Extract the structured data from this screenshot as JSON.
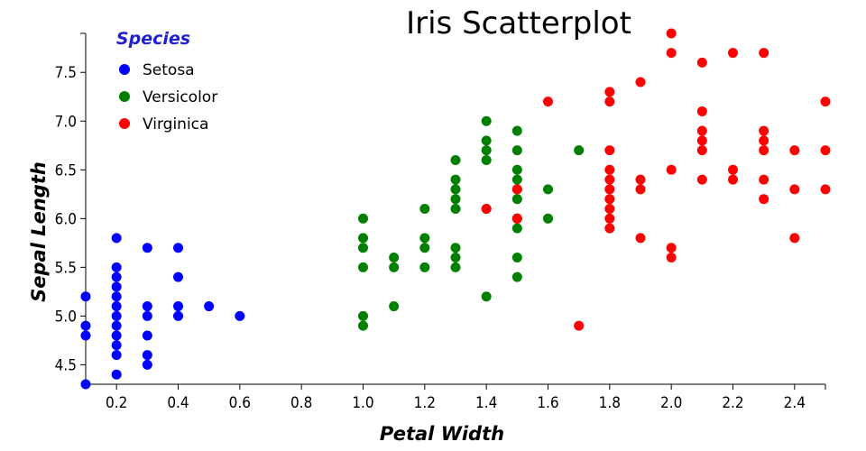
{
  "chart_data": {
    "type": "scatter",
    "title": "Iris Scatterplot",
    "xlabel": "Petal Width",
    "ylabel": "Sepal Length",
    "xlim": [
      0.1,
      2.5
    ],
    "ylim": [
      4.3,
      7.9
    ],
    "x_ticks": [
      {
        "value": 0.2,
        "label": "0.2"
      },
      {
        "value": 0.4,
        "label": "0.4"
      },
      {
        "value": 0.6,
        "label": "0.6"
      },
      {
        "value": 0.8,
        "label": "0.8"
      },
      {
        "value": 1.0,
        "label": "1.0"
      },
      {
        "value": 1.2,
        "label": "1.2"
      },
      {
        "value": 1.4,
        "label": "1.4"
      },
      {
        "value": 1.6,
        "label": "1.6"
      },
      {
        "value": 1.8,
        "label": "1.8"
      },
      {
        "value": 2.0,
        "label": "2.0"
      },
      {
        "value": 2.2,
        "label": "2.2"
      },
      {
        "value": 2.4,
        "label": "2.4"
      }
    ],
    "y_ticks": [
      {
        "value": 4.5,
        "label": "4.5"
      },
      {
        "value": 5.0,
        "label": "5.0"
      },
      {
        "value": 5.5,
        "label": "5.5"
      },
      {
        "value": 6.0,
        "label": "6.0"
      },
      {
        "value": 6.5,
        "label": "6.5"
      },
      {
        "value": 7.0,
        "label": "7.0"
      },
      {
        "value": 7.5,
        "label": "7.5"
      }
    ],
    "grid": false,
    "legend": {
      "title": "Species",
      "title_color": "#2020d0",
      "placement": "top-left"
    },
    "series": [
      {
        "name": "Setosa",
        "color": "#0000ff",
        "points": [
          [
            0.1,
            4.3
          ],
          [
            0.1,
            4.8
          ],
          [
            0.1,
            4.9
          ],
          [
            0.1,
            5.2
          ],
          [
            0.2,
            4.4
          ],
          [
            0.2,
            4.6
          ],
          [
            0.2,
            4.7
          ],
          [
            0.2,
            4.8
          ],
          [
            0.2,
            4.9
          ],
          [
            0.2,
            5.0
          ],
          [
            0.2,
            5.1
          ],
          [
            0.2,
            5.2
          ],
          [
            0.2,
            5.3
          ],
          [
            0.2,
            5.4
          ],
          [
            0.2,
            5.5
          ],
          [
            0.2,
            5.8
          ],
          [
            0.3,
            4.5
          ],
          [
            0.3,
            4.6
          ],
          [
            0.3,
            4.8
          ],
          [
            0.3,
            5.0
          ],
          [
            0.3,
            5.1
          ],
          [
            0.3,
            5.7
          ],
          [
            0.4,
            5.0
          ],
          [
            0.4,
            5.1
          ],
          [
            0.4,
            5.4
          ],
          [
            0.4,
            5.7
          ],
          [
            0.5,
            5.1
          ],
          [
            0.6,
            5.0
          ]
        ]
      },
      {
        "name": "Versicolor",
        "color": "#008000",
        "points": [
          [
            1.0,
            4.9
          ],
          [
            1.0,
            5.0
          ],
          [
            1.0,
            5.5
          ],
          [
            1.0,
            5.7
          ],
          [
            1.0,
            5.8
          ],
          [
            1.0,
            6.0
          ],
          [
            1.1,
            5.1
          ],
          [
            1.1,
            5.5
          ],
          [
            1.1,
            5.6
          ],
          [
            1.2,
            5.5
          ],
          [
            1.2,
            5.7
          ],
          [
            1.2,
            5.8
          ],
          [
            1.2,
            6.1
          ],
          [
            1.3,
            5.5
          ],
          [
            1.3,
            5.6
          ],
          [
            1.3,
            5.7
          ],
          [
            1.3,
            6.1
          ],
          [
            1.3,
            6.2
          ],
          [
            1.3,
            6.3
          ],
          [
            1.3,
            6.4
          ],
          [
            1.3,
            6.6
          ],
          [
            1.4,
            5.2
          ],
          [
            1.4,
            6.1
          ],
          [
            1.4,
            6.6
          ],
          [
            1.4,
            6.7
          ],
          [
            1.4,
            6.8
          ],
          [
            1.4,
            7.0
          ],
          [
            1.5,
            5.4
          ],
          [
            1.5,
            5.6
          ],
          [
            1.5,
            5.9
          ],
          [
            1.5,
            6.0
          ],
          [
            1.5,
            6.2
          ],
          [
            1.5,
            6.3
          ],
          [
            1.5,
            6.4
          ],
          [
            1.5,
            6.5
          ],
          [
            1.5,
            6.7
          ],
          [
            1.5,
            6.9
          ],
          [
            1.6,
            6.0
          ],
          [
            1.6,
            6.3
          ],
          [
            1.7,
            6.7
          ]
        ]
      },
      {
        "name": "Virginica",
        "color": "#ff0000",
        "points": [
          [
            1.4,
            6.1
          ],
          [
            1.5,
            6.0
          ],
          [
            1.5,
            6.3
          ],
          [
            1.6,
            7.2
          ],
          [
            1.7,
            4.9
          ],
          [
            1.8,
            5.9
          ],
          [
            1.8,
            6.0
          ],
          [
            1.8,
            6.1
          ],
          [
            1.8,
            6.2
          ],
          [
            1.8,
            6.3
          ],
          [
            1.8,
            6.4
          ],
          [
            1.8,
            6.5
          ],
          [
            1.8,
            6.7
          ],
          [
            1.8,
            7.2
          ],
          [
            1.8,
            7.3
          ],
          [
            1.9,
            5.8
          ],
          [
            1.9,
            6.3
          ],
          [
            1.9,
            6.4
          ],
          [
            1.9,
            7.4
          ],
          [
            2.0,
            5.6
          ],
          [
            2.0,
            5.7
          ],
          [
            2.0,
            6.5
          ],
          [
            2.0,
            7.7
          ],
          [
            2.0,
            7.9
          ],
          [
            2.1,
            6.4
          ],
          [
            2.1,
            6.7
          ],
          [
            2.1,
            6.8
          ],
          [
            2.1,
            6.9
          ],
          [
            2.1,
            7.1
          ],
          [
            2.1,
            7.6
          ],
          [
            2.2,
            6.4
          ],
          [
            2.2,
            6.5
          ],
          [
            2.2,
            7.7
          ],
          [
            2.3,
            6.2
          ],
          [
            2.3,
            6.4
          ],
          [
            2.3,
            6.7
          ],
          [
            2.3,
            6.8
          ],
          [
            2.3,
            6.9
          ],
          [
            2.3,
            7.7
          ],
          [
            2.4,
            5.8
          ],
          [
            2.4,
            6.3
          ],
          [
            2.4,
            6.7
          ],
          [
            2.5,
            6.3
          ],
          [
            2.5,
            6.7
          ],
          [
            2.5,
            7.2
          ]
        ]
      }
    ]
  }
}
